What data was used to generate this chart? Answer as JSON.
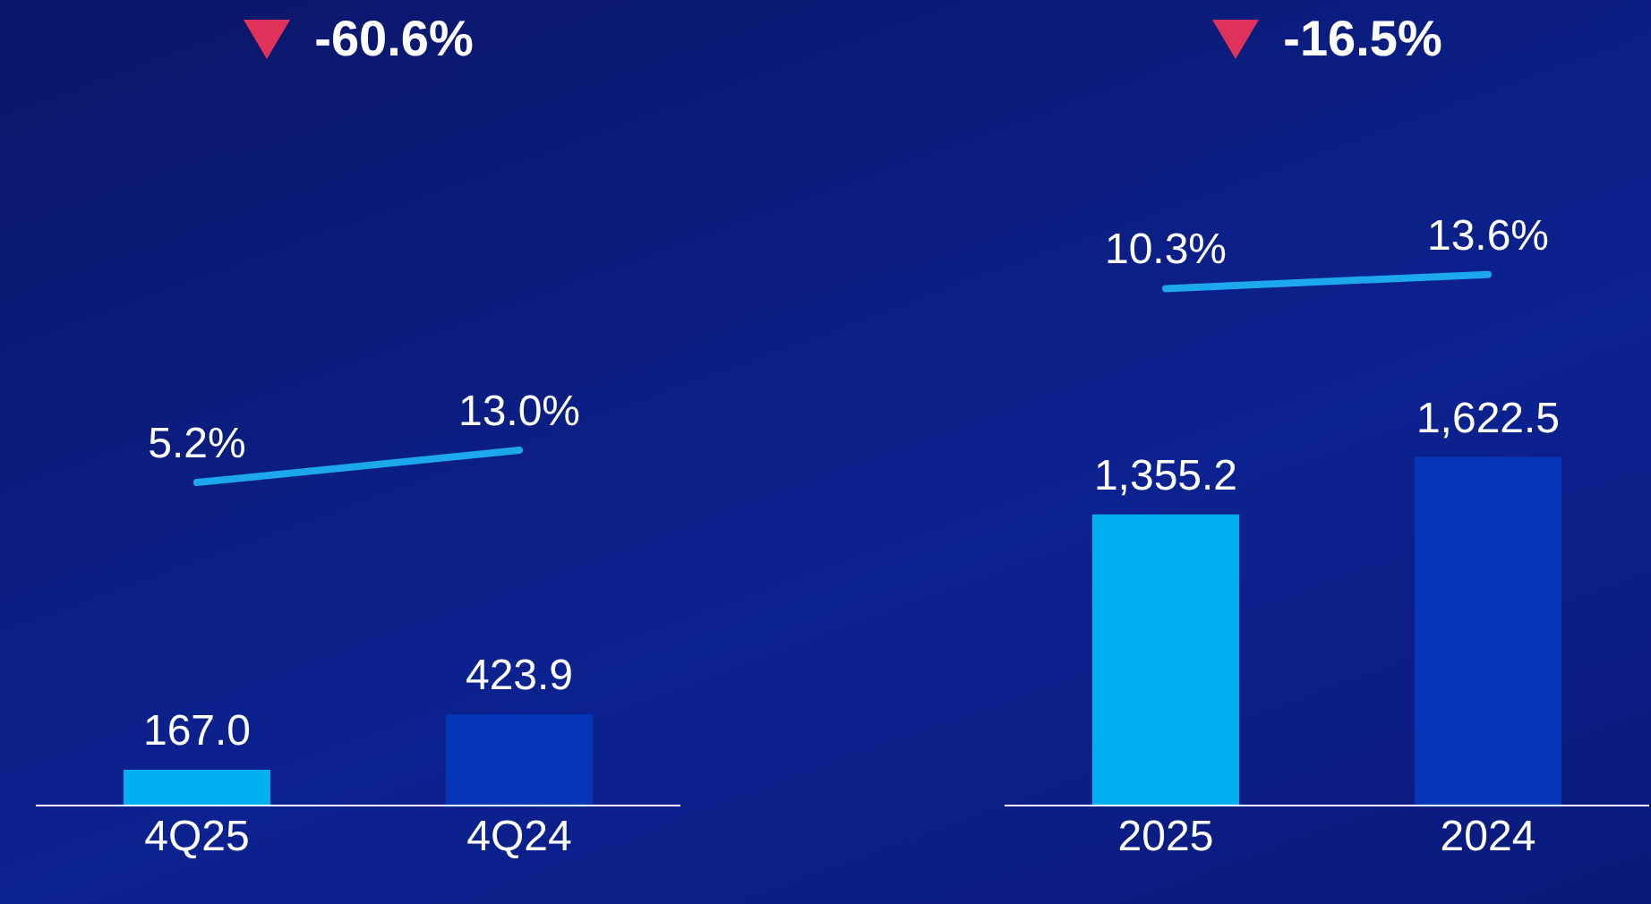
{
  "chart_data": [
    {
      "type": "bar",
      "categories": [
        "4Q25",
        "4Q24"
      ],
      "series": [
        {
          "colors": [
            "#00b0f0",
            "#0536b8"
          ],
          "values": [
            167.0,
            423.9
          ],
          "value_labels": [
            "167.0",
            "423.9"
          ]
        },
        {
          "type": "line",
          "axis": "y2",
          "color": "#1ba8ec",
          "values": [
            5.2,
            13.0
          ],
          "value_labels": [
            "5.2%",
            "13.0%"
          ]
        }
      ],
      "ylim": [
        0,
        3750
      ],
      "y2lim": [
        -73,
        122
      ],
      "tick_labels": "x",
      "marker": "none",
      "annotations": [
        "-60.6%"
      ]
    },
    {
      "type": "bar",
      "categories": [
        "2025",
        "2024"
      ],
      "series": [
        {
          "colors": [
            "#00b0f0",
            "#0536b8"
          ],
          "values": [
            1355.2,
            1622.5
          ],
          "value_labels": [
            "1,355.2",
            "1,622.5"
          ]
        },
        {
          "type": "line",
          "axis": "y2",
          "color": "#1ba8ec",
          "values": [
            10.3,
            13.6
          ],
          "value_labels": [
            "10.3%",
            "13.6%"
          ]
        }
      ],
      "ylim": [
        0,
        3750
      ],
      "y2lim": [
        -111,
        78
      ],
      "tick_labels": "x",
      "marker": "none",
      "annotations": [
        "-16.5%"
      ]
    }
  ]
}
